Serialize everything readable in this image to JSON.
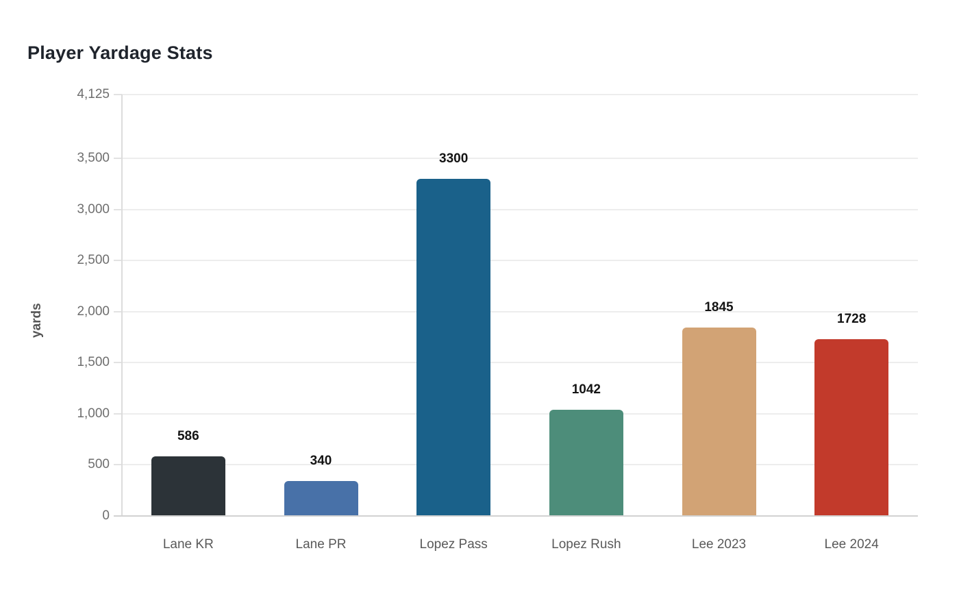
{
  "title": "Player Yardage Stats",
  "colors": {
    "background": "#ffffff",
    "title_text": "#1f242c",
    "axis_text": "#6e6e6e",
    "category_text": "#595959",
    "value_label_text": "#141414",
    "gridline": "#ededed",
    "axis_line": "#d2d2d2"
  },
  "chart_data": {
    "type": "bar",
    "title": "Player Yardage Stats",
    "ylabel": "yards",
    "xlabel": "",
    "categories": [
      "Lane KR",
      "Lane PR",
      "Lopez Pass",
      "Lopez Rush",
      "Lee 2023",
      "Lee 2024"
    ],
    "values": [
      586,
      340,
      3300,
      1042,
      1845,
      1728
    ],
    "value_labels": [
      "586",
      "340",
      "3300",
      "1042",
      "1845",
      "1728"
    ],
    "bar_colors": [
      "#2c3338",
      "#4871a8",
      "#1a618a",
      "#4d8d7a",
      "#d2a375",
      "#c23a2b"
    ],
    "ylim": [
      0,
      4125
    ],
    "yticks": [
      0,
      500,
      1000,
      1500,
      2000,
      2500,
      3000,
      3500,
      4125
    ],
    "ytick_labels": [
      "0",
      "500",
      "1,000",
      "1,500",
      "2,000",
      "2,500",
      "3,000",
      "3,500",
      "4,125"
    ],
    "grid": true,
    "legend": false
  }
}
